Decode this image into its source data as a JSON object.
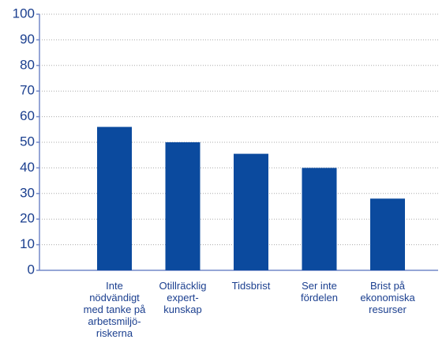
{
  "chart_data": {
    "type": "bar",
    "categories": [
      "Inte\nnödvändigt\nmed tanke på\narbetsmiljö-\nriskerna",
      "Otillräcklig\nexpert-\nkunskap",
      "Tidsbrist",
      "Ser inte\nfördelen",
      "Brist på\nekonomiska\nresurser"
    ],
    "values": [
      56,
      50,
      45.5,
      40,
      28
    ],
    "color": "#0b4a9e",
    "ylim": [
      0,
      100
    ],
    "yticks": [
      0,
      10,
      20,
      30,
      40,
      50,
      60,
      70,
      80,
      90,
      100
    ],
    "grid": true
  }
}
